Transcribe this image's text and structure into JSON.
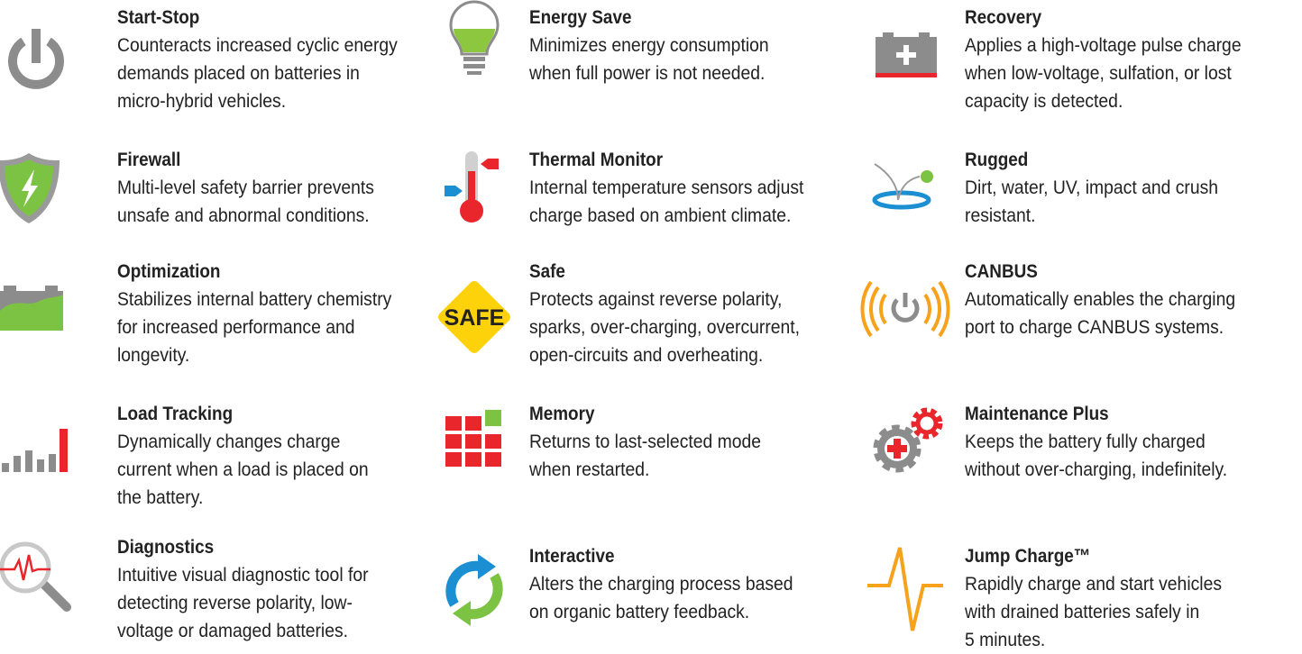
{
  "features": [
    {
      "title": "Start-Stop",
      "lines": [
        "Counteracts increased cyclic energy",
        "demands placed on batteries in",
        "micro-hybrid vehicles."
      ]
    },
    {
      "title": "Firewall",
      "lines": [
        "Multi-level safety barrier prevents",
        "unsafe and abnormal conditions."
      ]
    },
    {
      "title": "Optimization",
      "lines": [
        "Stabilizes internal battery chemistry",
        "for increased performance and",
        "longevity."
      ]
    },
    {
      "title": "Load Tracking",
      "lines": [
        "Dynamically changes charge",
        "current when a load is placed on",
        "the battery."
      ]
    },
    {
      "title": "Diagnostics",
      "lines": [
        "Intuitive visual diagnostic tool for",
        "detecting reverse polarity, low-",
        "voltage or damaged batteries."
      ]
    },
    {
      "title": "Energy Save",
      "lines": [
        "Minimizes energy consumption",
        "when full power is not needed."
      ]
    },
    {
      "title": "Thermal Monitor",
      "lines": [
        "Internal temperature sensors adjust",
        "charge based on ambient climate."
      ]
    },
    {
      "title": "Safe",
      "icon_text": "SAFE",
      "lines": [
        "Protects against reverse polarity,",
        "sparks, over-charging, overcurrent,",
        "open-circuits and overheating."
      ]
    },
    {
      "title": "Memory",
      "lines": [
        "Returns to last-selected mode",
        "when restarted."
      ]
    },
    {
      "title": "Interactive",
      "lines": [
        "Alters the charging process based",
        "on organic battery feedback."
      ]
    },
    {
      "title": "Recovery",
      "lines": [
        "Applies a high-voltage pulse charge",
        "when low-voltage, sulfation, or lost",
        "capacity is detected."
      ]
    },
    {
      "title": "Rugged",
      "lines": [
        "Dirt, water, UV, impact and crush",
        "resistant."
      ]
    },
    {
      "title": "CANBUS",
      "lines": [
        "Automatically enables the charging",
        "port to charge CANBUS systems."
      ]
    },
    {
      "title": "Maintenance Plus",
      "lines": [
        "Keeps the battery fully charged",
        "without over-charging, indefinitely."
      ]
    },
    {
      "title": "Jump Charge™",
      "lines": [
        "Rapidly charge and start vehicles",
        "with drained batteries safely in",
        "5 minutes."
      ]
    }
  ]
}
